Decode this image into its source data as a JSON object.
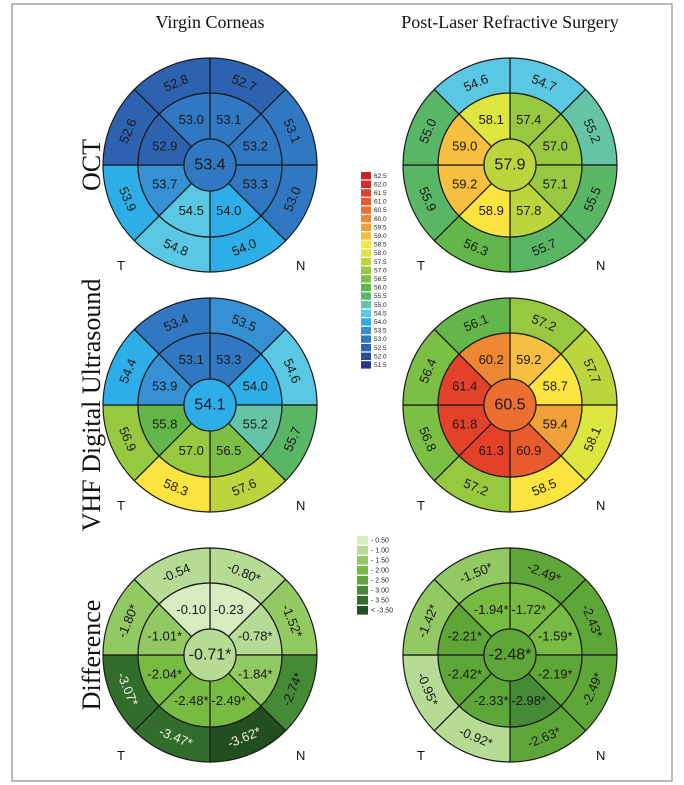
{
  "columns": [
    "Virgin Corneas",
    "Post-Laser Refractive Surgery"
  ],
  "rows": [
    "OCT",
    "VHF Digital Ultrasound",
    "Difference"
  ],
  "side_labels": {
    "left": "T",
    "right": "N"
  },
  "legend_top": {
    "labels": [
      "62.5",
      "62.0",
      "61.5",
      "61.0",
      "60.5",
      "60.0",
      "59.5",
      "59.0",
      "58.5",
      "58.0",
      "57.5",
      "57.0",
      "56.5",
      "56.0",
      "55.5",
      "55.0",
      "54.5",
      "54.0",
      "53.5",
      "53.0",
      "52.5",
      "52.0",
      "51.5"
    ],
    "colors": [
      "#c8232a",
      "#d72b2b",
      "#e3412a",
      "#e95b2c",
      "#ec6f2f",
      "#ef8634",
      "#f2a03a",
      "#f7bf40",
      "#fbe43f",
      "#dde63e",
      "#bad63c",
      "#96c940",
      "#7bbf44",
      "#63b64a",
      "#59b665",
      "#66c4a6",
      "#5bc8e3",
      "#2eaee8",
      "#3690d4",
      "#3178c3",
      "#2d62b0",
      "#2a4a9e",
      "#263691"
    ]
  },
  "legend_diff": {
    "labels": [
      "- 0.50",
      "- 1.00",
      "- 1.50",
      "- 2.00",
      "- 2.50",
      "- 3.00",
      "- 3.50",
      "< -3.50"
    ],
    "colors": [
      "#d6ecc1",
      "#b5db95",
      "#93c962",
      "#78bb42",
      "#5ea637",
      "#458a35",
      "#336d2c",
      "#224f20"
    ]
  },
  "maps": [
    {
      "row": 0,
      "col": 0,
      "center": "53.4",
      "inner": [
        "53.1",
        "53.2",
        "53.3",
        "54.0",
        "54.5",
        "53.7",
        "52.9",
        "53.0"
      ],
      "outer": [
        "52.7",
        "53.1",
        "53.0",
        "54.0",
        "54.8",
        "53.9",
        "52.6",
        "52.8"
      ],
      "center_color": "#3178c3",
      "inner_colors": [
        "#3178c3",
        "#3178c3",
        "#3178c3",
        "#2eaee8",
        "#5bc8e3",
        "#3690d4",
        "#2d62b0",
        "#3178c3"
      ],
      "outer_colors": [
        "#2d62b0",
        "#3178c3",
        "#3178c3",
        "#2eaee8",
        "#5bc8e3",
        "#2eaee8",
        "#2d62b0",
        "#2d62b0"
      ]
    },
    {
      "row": 0,
      "col": 1,
      "center": "57.9",
      "inner": [
        "57.4",
        "57.0",
        "57.1",
        "57.8",
        "58.9",
        "59.2",
        "59.0",
        "58.1"
      ],
      "outer": [
        "54.7",
        "55.2",
        "55.5",
        "55.7",
        "56.3",
        "55.9",
        "55.0",
        "54.6"
      ],
      "center_color": "#bad63c",
      "inner_colors": [
        "#96c940",
        "#96c940",
        "#96c940",
        "#bad63c",
        "#fbe43f",
        "#f7bf40",
        "#f7bf40",
        "#dde63e"
      ],
      "outer_colors": [
        "#5bc8e3",
        "#66c4a6",
        "#59b665",
        "#59b665",
        "#63b64a",
        "#59b665",
        "#59b665",
        "#5bc8e3"
      ]
    },
    {
      "row": 1,
      "col": 0,
      "center": "54.1",
      "inner": [
        "53.3",
        "54.0",
        "55.2",
        "56.5",
        "57.0",
        "55.8",
        "53.9",
        "53.1"
      ],
      "outer": [
        "53.5",
        "54.6",
        "55.7",
        "57.6",
        "58.3",
        "56.9",
        "54.4",
        "53.4"
      ],
      "center_color": "#2eaee8",
      "inner_colors": [
        "#3178c3",
        "#2eaee8",
        "#66c4a6",
        "#7bbf44",
        "#96c940",
        "#63b64a",
        "#3690d4",
        "#3178c3"
      ],
      "outer_colors": [
        "#3690d4",
        "#5bc8e3",
        "#59b665",
        "#bad63c",
        "#fbe43f",
        "#96c940",
        "#2eaee8",
        "#3178c3"
      ]
    },
    {
      "row": 1,
      "col": 1,
      "center": "60.5",
      "inner": [
        "59.2",
        "58.7",
        "59.4",
        "60.9",
        "61.3",
        "61.8",
        "61.4",
        "60.2"
      ],
      "outer": [
        "57.2",
        "57.7",
        "58.1",
        "58.5",
        "57.2",
        "56.8",
        "56.4",
        "56.1"
      ],
      "center_color": "#ec6f2f",
      "inner_colors": [
        "#f7bf40",
        "#fbe43f",
        "#f2a03a",
        "#e95b2c",
        "#e3412a",
        "#e3412a",
        "#e3412a",
        "#ef8634"
      ],
      "outer_colors": [
        "#96c940",
        "#bad63c",
        "#dde63e",
        "#fbe43f",
        "#96c940",
        "#7bbf44",
        "#7bbf44",
        "#63b64a"
      ]
    },
    {
      "row": 2,
      "col": 0,
      "center": "-0.71*",
      "inner": [
        "-0.23",
        "-0.78*",
        "-1.84*",
        "-2.49*",
        "-2.48*",
        "-2.04*",
        "-1.01*",
        "-0.10"
      ],
      "outer": [
        "-0.80*",
        "-1.52*",
        "-2.74*",
        "-3.62*",
        "-3.47*",
        "-3.07*",
        "-1.80*",
        "-0.54"
      ],
      "center_color": "#b5db95",
      "inner_colors": [
        "#d6ecc1",
        "#b5db95",
        "#93c962",
        "#78bb42",
        "#78bb42",
        "#78bb42",
        "#93c962",
        "#d6ecc1"
      ],
      "outer_colors": [
        "#b5db95",
        "#93c962",
        "#458a35",
        "#224f20",
        "#336d2c",
        "#336d2c",
        "#93c962",
        "#b5db95"
      ]
    },
    {
      "row": 2,
      "col": 1,
      "center": "-2.48*",
      "inner": [
        "-1.72*",
        "-1.59*",
        "-2.19*",
        "-2.98*",
        "-2.33*",
        "-2.42*",
        "-2.21*",
        "-1.94*"
      ],
      "outer": [
        "-2.49*",
        "-2.43*",
        "-2.49*",
        "-2.63*",
        "-0.92*",
        "-0.95*",
        "-1.42*",
        "-1.50*"
      ],
      "center_color": "#5ea637",
      "inner_colors": [
        "#78bb42",
        "#78bb42",
        "#5ea637",
        "#458a35",
        "#5ea637",
        "#5ea637",
        "#5ea637",
        "#78bb42"
      ],
      "outer_colors": [
        "#5ea637",
        "#5ea637",
        "#5ea637",
        "#5ea637",
        "#b5db95",
        "#b5db95",
        "#93c962",
        "#93c962"
      ]
    }
  ]
}
